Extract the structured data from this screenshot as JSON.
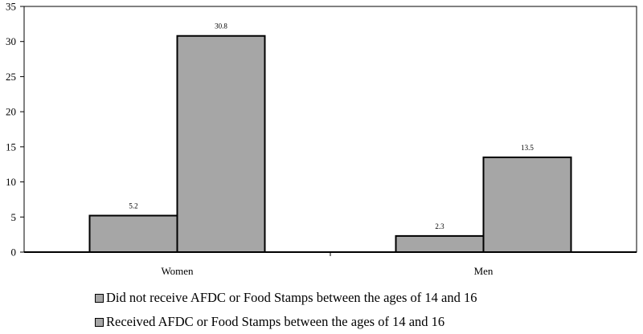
{
  "chart_data": {
    "type": "bar",
    "title": "",
    "xlabel": "",
    "ylabel": "",
    "categories": [
      "Women",
      "Men"
    ],
    "series": [
      {
        "name": "Did not receive AFDC or Food Stamps between the ages of 14 and 16",
        "values": [
          5.2,
          2.3
        ],
        "labels": [
          "5.2",
          "2.3"
        ]
      },
      {
        "name": "Received AFDC or Food Stamps between the ages of 14 and 16",
        "values": [
          30.8,
          13.5
        ],
        "labels": [
          "30.8",
          "13.5"
        ]
      }
    ],
    "ylim": [
      0,
      35
    ],
    "yticks": [
      0,
      5,
      10,
      15,
      20,
      25,
      30,
      35
    ],
    "ytick_labels": [
      "0",
      "5",
      "10",
      "15",
      "20",
      "25",
      "30",
      "35"
    ],
    "grid": false,
    "legend_position": "bottom",
    "bar_color": "#a6a6a6",
    "edge_color": "#000000"
  }
}
